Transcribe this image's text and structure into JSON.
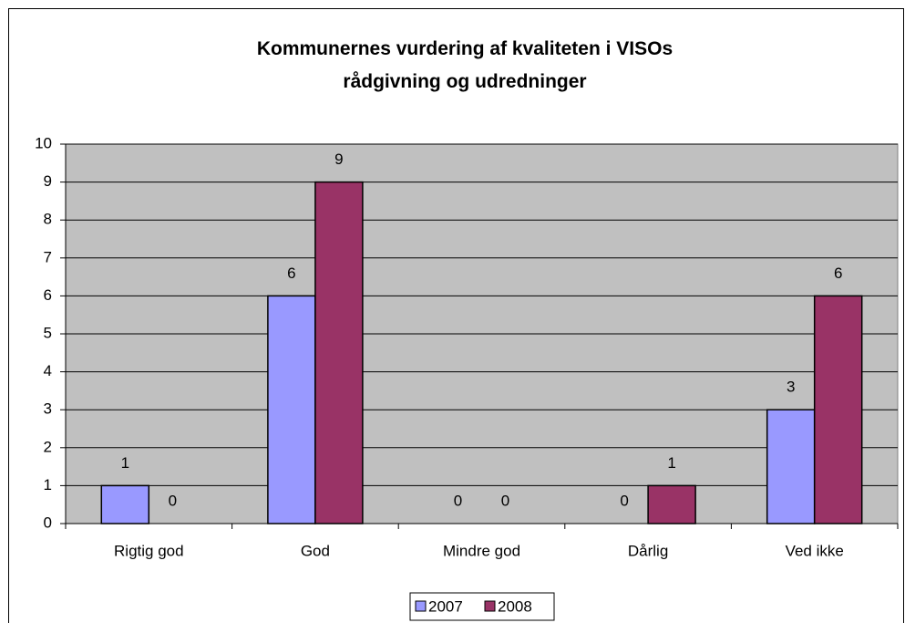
{
  "chart_data": {
    "type": "bar",
    "title": "Kommunernes vurdering af kvaliteten i VISOs rådgivning og udredninger",
    "categories": [
      "Rigtig god",
      "God",
      "Mindre god",
      "Dårlig",
      "Ved ikke"
    ],
    "series": [
      {
        "name": "2007",
        "color": "#9999ff",
        "values": [
          1,
          6,
          0,
          0,
          3
        ]
      },
      {
        "name": "2008",
        "color": "#993366",
        "values": [
          0,
          9,
          0,
          1,
          6
        ]
      }
    ],
    "ylim": [
      0,
      10
    ],
    "yticks": [
      0,
      1,
      2,
      3,
      4,
      5,
      6,
      7,
      8,
      9,
      10
    ],
    "grid": true,
    "legend": "bottom"
  }
}
